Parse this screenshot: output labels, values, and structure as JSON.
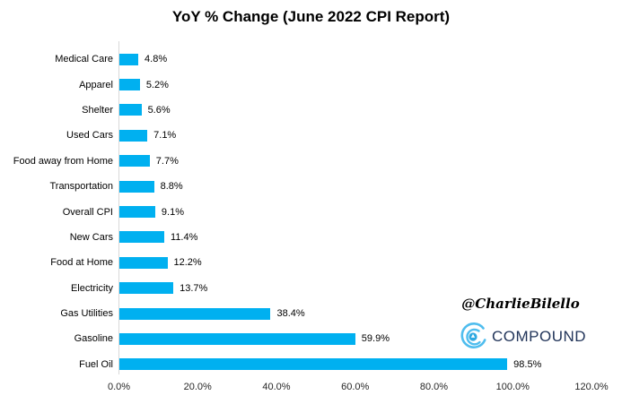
{
  "title": "YoY % Change (June 2022 CPI Report)",
  "watermark": {
    "handle": "@CharlieBilello",
    "brand": "COMPOUND"
  },
  "colors": {
    "bar": "#00b0f0",
    "axis_line": "#d9d9d9",
    "text": "#000000",
    "tick_text": "#262626",
    "brand_text": "#22355a",
    "brand_icon_arc": "#4fbdee",
    "brand_icon_dot": "#2fa9e1"
  },
  "chart_data": {
    "type": "bar",
    "orientation": "horizontal",
    "title": "YoY % Change (June 2022 CPI Report)",
    "categories": [
      "Medical Care",
      "Apparel",
      "Shelter",
      "Used Cars",
      "Food away from Home",
      "Transportation",
      "Overall CPI",
      "New Cars",
      "Food at Home",
      "Electricity",
      "Gas Utilities",
      "Gasoline",
      "Fuel Oil"
    ],
    "values": [
      4.8,
      5.2,
      5.6,
      7.1,
      7.7,
      8.8,
      9.1,
      11.4,
      12.2,
      13.7,
      38.4,
      59.9,
      98.5
    ],
    "value_labels": [
      "4.8%",
      "5.2%",
      "5.6%",
      "7.1%",
      "7.7%",
      "8.8%",
      "9.1%",
      "11.4%",
      "12.2%",
      "13.7%",
      "38.4%",
      "59.9%",
      "98.5%"
    ],
    "xlabel": "",
    "ylabel": "",
    "xlim": [
      0,
      120
    ],
    "xticks": [
      "0.0%",
      "20.0%",
      "40.0%",
      "60.0%",
      "80.0%",
      "100.0%",
      "120.0%"
    ],
    "xtick_values": [
      0,
      20,
      40,
      60,
      80,
      100,
      120
    ],
    "grid": false,
    "legend": false
  }
}
